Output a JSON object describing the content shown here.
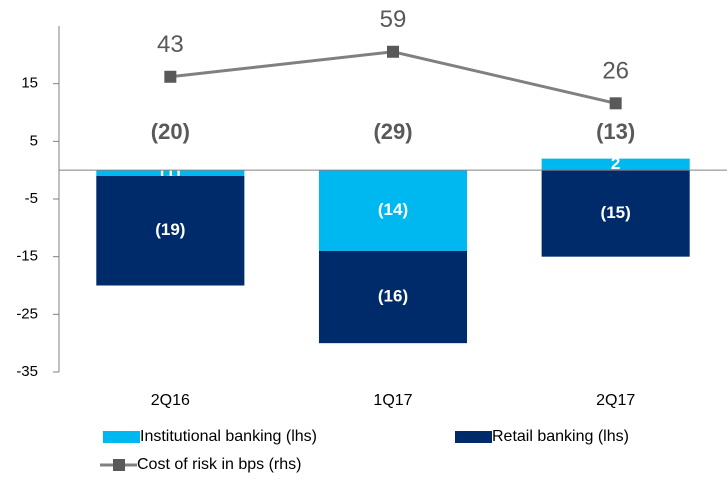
{
  "chart_data": {
    "type": "stacked-bar-line",
    "categories": [
      "2Q16",
      "1Q17",
      "2Q17"
    ],
    "series": [
      {
        "name": "Institutional banking (lhs)",
        "color": "#00b8f0",
        "values": [
          -1,
          -14,
          2
        ],
        "value_labels": [
          "(1)",
          "(14)",
          "2"
        ]
      },
      {
        "name": "Retail banking (lhs)",
        "color": "#002b6b",
        "values": [
          -19,
          -16,
          -15
        ],
        "value_labels": [
          "(19)",
          "(16)",
          "(15)"
        ]
      },
      {
        "name": "Cost of risk in bps (rhs)",
        "color": "#808080",
        "marker_color": "#595959",
        "type": "line",
        "axis": "y2",
        "values": [
          43,
          59,
          26
        ]
      }
    ],
    "totals": {
      "values": [
        -20,
        -29,
        -13
      ],
      "value_labels": [
        "(20)",
        "(29)",
        "(13)"
      ],
      "color": "#595959"
    },
    "ylim": [
      -35,
      25
    ],
    "yticks": [
      15,
      5,
      -5,
      -15,
      -25,
      -35
    ],
    "y2lim": [
      -146,
      75.5
    ]
  }
}
